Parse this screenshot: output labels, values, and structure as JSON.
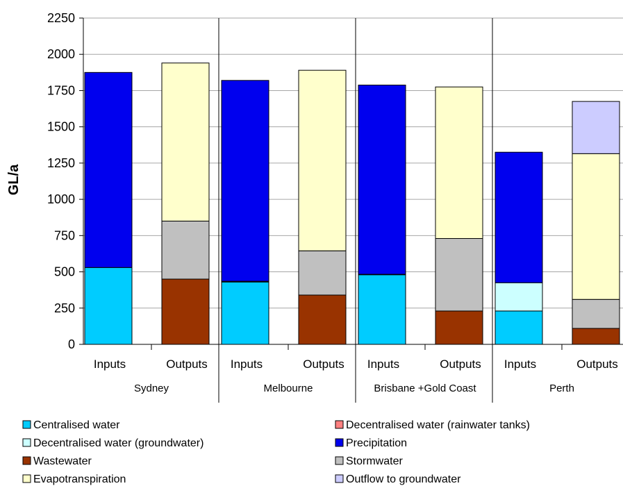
{
  "chart_data": {
    "type": "bar",
    "stacked": true,
    "ylabel": "GL/a",
    "ylim": [
      0,
      2250
    ],
    "yticks": [
      0,
      250,
      500,
      750,
      1000,
      1250,
      1500,
      1750,
      2000,
      2250
    ],
    "grid": true,
    "legend_position": "bottom",
    "groups": [
      {
        "name": "Sydney",
        "categories": [
          "Inputs",
          "Outputs"
        ]
      },
      {
        "name": "Melbourne",
        "categories": [
          "Inputs",
          "Outputs"
        ]
      },
      {
        "name": "Brisbane +Gold Coast",
        "categories": [
          "Inputs",
          "Outputs"
        ]
      },
      {
        "name": "Perth",
        "categories": [
          "Inputs",
          "Outputs"
        ]
      }
    ],
    "categories": [
      "Inputs",
      "Outputs",
      "Inputs",
      "Outputs",
      "Inputs",
      "Outputs",
      "Inputs",
      "Outputs"
    ],
    "series": [
      {
        "name": "Centralised water",
        "color": "#00ccff",
        "values": [
          530,
          0,
          430,
          0,
          480,
          0,
          230,
          0
        ]
      },
      {
        "name": "Decentralised water (rainwater tanks)",
        "color": "#ff8080",
        "values": [
          0,
          0,
          5,
          0,
          3,
          0,
          0,
          0
        ]
      },
      {
        "name": "Decentralised water (groundwater)",
        "color": "#ccffff",
        "values": [
          0,
          0,
          0,
          0,
          0,
          0,
          195,
          0
        ]
      },
      {
        "name": "Precipitation",
        "color": "#0000ee",
        "values": [
          1345,
          0,
          1385,
          0,
          1305,
          0,
          900,
          0
        ]
      },
      {
        "name": "Wastewater",
        "color": "#993300",
        "values": [
          0,
          450,
          0,
          340,
          0,
          230,
          0,
          110
        ]
      },
      {
        "name": "Stormwater",
        "color": "#c0c0c0",
        "values": [
          0,
          400,
          0,
          305,
          0,
          500,
          0,
          200
        ]
      },
      {
        "name": "Evapotranspiration",
        "color": "#ffffcc",
        "values": [
          0,
          1090,
          0,
          1245,
          0,
          1045,
          0,
          1005
        ]
      },
      {
        "name": "Outflow to groundwater",
        "color": "#ccccff",
        "values": [
          0,
          0,
          0,
          0,
          0,
          0,
          0,
          360
        ]
      }
    ]
  }
}
